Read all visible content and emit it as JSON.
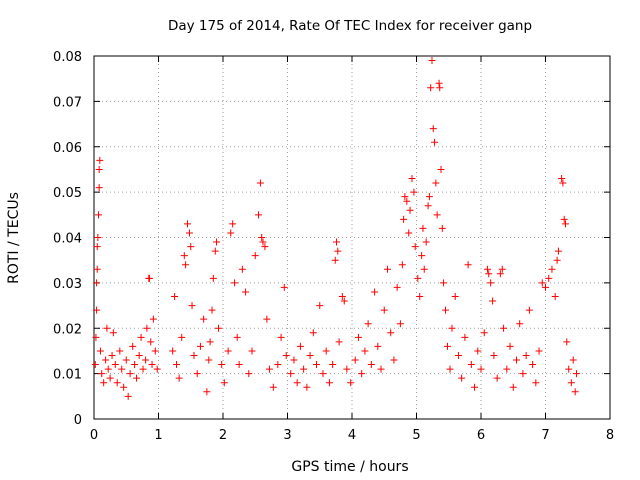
{
  "chart_data": {
    "type": "scatter",
    "title": "Day 175 of 2014, Rate Of TEC Index for receiver ganp",
    "xlabel": "GPS time / hours",
    "ylabel": "ROTI / TECUs",
    "xlim": [
      0,
      8
    ],
    "ylim": [
      0,
      0.08
    ],
    "x_ticks": [
      "0",
      "1",
      "2",
      "3",
      "4",
      "5",
      "6",
      "7",
      "8"
    ],
    "y_ticks": [
      "0",
      "0.01",
      "0.02",
      "0.03",
      "0.04",
      "0.05",
      "0.06",
      "0.07",
      "0.08"
    ],
    "grid": true,
    "marker": "+",
    "color": "#ff0000",
    "series": [
      {
        "name": "ROTI",
        "points": [
          [
            0.02,
            0.012
          ],
          [
            0.03,
            0.018
          ],
          [
            0.04,
            0.024
          ],
          [
            0.04,
            0.03
          ],
          [
            0.05,
            0.033
          ],
          [
            0.05,
            0.038
          ],
          [
            0.06,
            0.04
          ],
          [
            0.07,
            0.045
          ],
          [
            0.08,
            0.051
          ],
          [
            0.08,
            0.055
          ],
          [
            0.09,
            0.057
          ],
          [
            0.1,
            0.015
          ],
          [
            0.12,
            0.01
          ],
          [
            0.15,
            0.008
          ],
          [
            0.18,
            0.013
          ],
          [
            0.2,
            0.02
          ],
          [
            0.22,
            0.011
          ],
          [
            0.25,
            0.009
          ],
          [
            0.28,
            0.014
          ],
          [
            0.3,
            0.019
          ],
          [
            0.33,
            0.012
          ],
          [
            0.36,
            0.008
          ],
          [
            0.4,
            0.015
          ],
          [
            0.43,
            0.011
          ],
          [
            0.46,
            0.007
          ],
          [
            0.5,
            0.013
          ],
          [
            0.53,
            0.005
          ],
          [
            0.56,
            0.01
          ],
          [
            0.6,
            0.016
          ],
          [
            0.63,
            0.012
          ],
          [
            0.66,
            0.009
          ],
          [
            0.7,
            0.014
          ],
          [
            0.73,
            0.018
          ],
          [
            0.76,
            0.011
          ],
          [
            0.8,
            0.013
          ],
          [
            0.82,
            0.02
          ],
          [
            0.85,
            0.031
          ],
          [
            0.86,
            0.031
          ],
          [
            0.88,
            0.017
          ],
          [
            0.9,
            0.012
          ],
          [
            0.92,
            0.022
          ],
          [
            0.95,
            0.015
          ],
          [
            0.98,
            0.011
          ],
          [
            1.22,
            0.015
          ],
          [
            1.25,
            0.027
          ],
          [
            1.28,
            0.012
          ],
          [
            1.32,
            0.009
          ],
          [
            1.36,
            0.018
          ],
          [
            1.4,
            0.036
          ],
          [
            1.42,
            0.034
          ],
          [
            1.45,
            0.043
          ],
          [
            1.48,
            0.041
          ],
          [
            1.5,
            0.038
          ],
          [
            1.52,
            0.025
          ],
          [
            1.55,
            0.014
          ],
          [
            1.6,
            0.01
          ],
          [
            1.65,
            0.016
          ],
          [
            1.7,
            0.022
          ],
          [
            1.75,
            0.006
          ],
          [
            1.78,
            0.013
          ],
          [
            1.8,
            0.017
          ],
          [
            1.83,
            0.024
          ],
          [
            1.85,
            0.031
          ],
          [
            1.88,
            0.037
          ],
          [
            1.9,
            0.039
          ],
          [
            1.93,
            0.02
          ],
          [
            1.98,
            0.012
          ],
          [
            2.02,
            0.008
          ],
          [
            2.08,
            0.015
          ],
          [
            2.12,
            0.041
          ],
          [
            2.15,
            0.043
          ],
          [
            2.18,
            0.03
          ],
          [
            2.22,
            0.018
          ],
          [
            2.25,
            0.012
          ],
          [
            2.3,
            0.033
          ],
          [
            2.35,
            0.028
          ],
          [
            2.4,
            0.01
          ],
          [
            2.45,
            0.015
          ],
          [
            2.5,
            0.036
          ],
          [
            2.55,
            0.045
          ],
          [
            2.58,
            0.052
          ],
          [
            2.6,
            0.04
          ],
          [
            2.62,
            0.039
          ],
          [
            2.65,
            0.038
          ],
          [
            2.68,
            0.022
          ],
          [
            2.72,
            0.011
          ],
          [
            2.78,
            0.007
          ],
          [
            2.85,
            0.012
          ],
          [
            2.9,
            0.018
          ],
          [
            2.95,
            0.029
          ],
          [
            2.98,
            0.014
          ],
          [
            3.05,
            0.01
          ],
          [
            3.1,
            0.013
          ],
          [
            3.15,
            0.008
          ],
          [
            3.2,
            0.016
          ],
          [
            3.25,
            0.011
          ],
          [
            3.3,
            0.007
          ],
          [
            3.35,
            0.014
          ],
          [
            3.4,
            0.019
          ],
          [
            3.45,
            0.012
          ],
          [
            3.5,
            0.025
          ],
          [
            3.55,
            0.01
          ],
          [
            3.6,
            0.015
          ],
          [
            3.65,
            0.008
          ],
          [
            3.7,
            0.012
          ],
          [
            3.74,
            0.035
          ],
          [
            3.76,
            0.039
          ],
          [
            3.78,
            0.037
          ],
          [
            3.8,
            0.017
          ],
          [
            3.85,
            0.027
          ],
          [
            3.88,
            0.026
          ],
          [
            3.92,
            0.011
          ],
          [
            3.98,
            0.008
          ],
          [
            4.05,
            0.013
          ],
          [
            4.1,
            0.018
          ],
          [
            4.15,
            0.01
          ],
          [
            4.2,
            0.015
          ],
          [
            4.25,
            0.021
          ],
          [
            4.3,
            0.012
          ],
          [
            4.35,
            0.028
          ],
          [
            4.4,
            0.016
          ],
          [
            4.45,
            0.011
          ],
          [
            4.5,
            0.024
          ],
          [
            4.55,
            0.033
          ],
          [
            4.6,
            0.019
          ],
          [
            4.65,
            0.013
          ],
          [
            4.7,
            0.029
          ],
          [
            4.75,
            0.021
          ],
          [
            4.78,
            0.034
          ],
          [
            4.8,
            0.044
          ],
          [
            4.82,
            0.049
          ],
          [
            4.85,
            0.048
          ],
          [
            4.88,
            0.041
          ],
          [
            4.9,
            0.046
          ],
          [
            4.93,
            0.053
          ],
          [
            4.96,
            0.05
          ],
          [
            4.98,
            0.038
          ],
          [
            5.02,
            0.031
          ],
          [
            5.05,
            0.027
          ],
          [
            5.08,
            0.036
          ],
          [
            5.1,
            0.042
          ],
          [
            5.12,
            0.033
          ],
          [
            5.15,
            0.039
          ],
          [
            5.18,
            0.047
          ],
          [
            5.2,
            0.049
          ],
          [
            5.22,
            0.073
          ],
          [
            5.24,
            0.079
          ],
          [
            5.26,
            0.064
          ],
          [
            5.28,
            0.061
          ],
          [
            5.3,
            0.052
          ],
          [
            5.32,
            0.045
          ],
          [
            5.35,
            0.074
          ],
          [
            5.36,
            0.073
          ],
          [
            5.38,
            0.055
          ],
          [
            5.4,
            0.042
          ],
          [
            5.42,
            0.03
          ],
          [
            5.45,
            0.024
          ],
          [
            5.48,
            0.016
          ],
          [
            5.52,
            0.011
          ],
          [
            5.55,
            0.02
          ],
          [
            5.6,
            0.027
          ],
          [
            5.65,
            0.014
          ],
          [
            5.7,
            0.009
          ],
          [
            5.75,
            0.018
          ],
          [
            5.8,
            0.034
          ],
          [
            5.85,
            0.012
          ],
          [
            5.9,
            0.007
          ],
          [
            5.95,
            0.015
          ],
          [
            6.0,
            0.011
          ],
          [
            6.05,
            0.019
          ],
          [
            6.1,
            0.033
          ],
          [
            6.12,
            0.032
          ],
          [
            6.15,
            0.03
          ],
          [
            6.18,
            0.026
          ],
          [
            6.2,
            0.014
          ],
          [
            6.25,
            0.009
          ],
          [
            6.3,
            0.032
          ],
          [
            6.33,
            0.033
          ],
          [
            6.35,
            0.02
          ],
          [
            6.4,
            0.011
          ],
          [
            6.45,
            0.016
          ],
          [
            6.5,
            0.007
          ],
          [
            6.55,
            0.013
          ],
          [
            6.6,
            0.021
          ],
          [
            6.65,
            0.01
          ],
          [
            6.7,
            0.014
          ],
          [
            6.75,
            0.024
          ],
          [
            6.8,
            0.012
          ],
          [
            6.85,
            0.008
          ],
          [
            6.9,
            0.015
          ],
          [
            6.95,
            0.03
          ],
          [
            7.0,
            0.029
          ],
          [
            7.05,
            0.031
          ],
          [
            7.1,
            0.033
          ],
          [
            7.15,
            0.027
          ],
          [
            7.18,
            0.035
          ],
          [
            7.2,
            0.037
          ],
          [
            7.25,
            0.053
          ],
          [
            7.27,
            0.052
          ],
          [
            7.29,
            0.044
          ],
          [
            7.31,
            0.043
          ],
          [
            7.33,
            0.017
          ],
          [
            7.36,
            0.011
          ],
          [
            7.4,
            0.008
          ],
          [
            7.43,
            0.013
          ],
          [
            7.46,
            0.006
          ],
          [
            7.48,
            0.01
          ]
        ]
      }
    ]
  }
}
